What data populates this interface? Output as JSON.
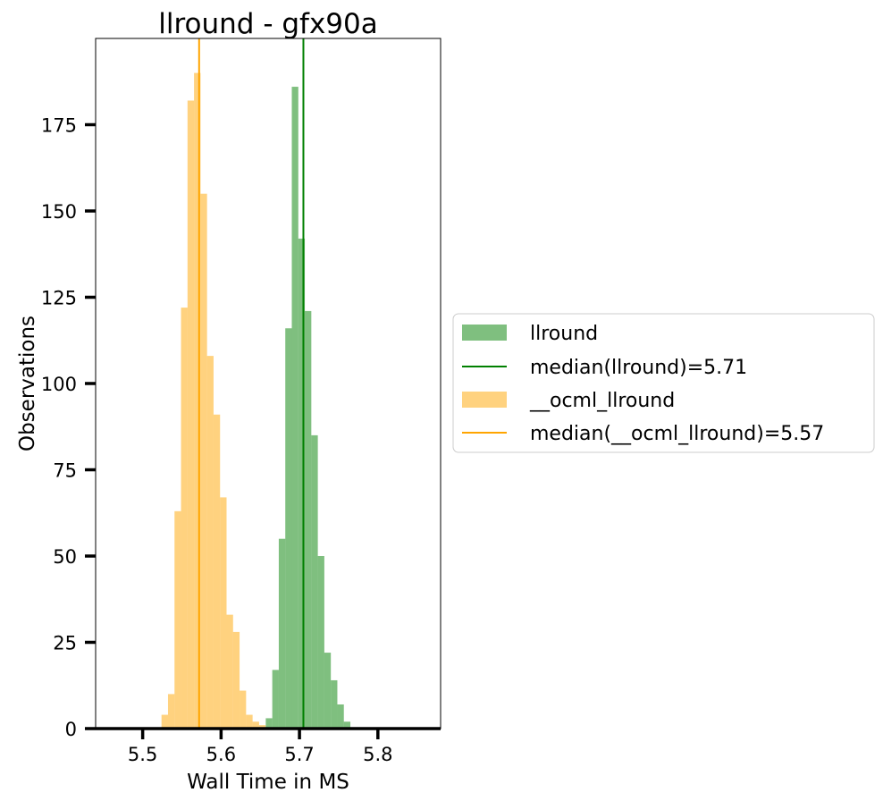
{
  "chart_data": {
    "type": "bar",
    "title": "llround - gfx90a",
    "xlabel": "Wall Time in MS",
    "ylabel": "Observations",
    "xlim": [
      5.44,
      5.88
    ],
    "ylim": [
      0,
      200
    ],
    "xticks": [
      "5.5",
      "5.6",
      "5.7",
      "5.8"
    ],
    "yticks": [
      "0",
      "25",
      "50",
      "75",
      "100",
      "125",
      "150",
      "175"
    ],
    "grid": false,
    "legend_placement": "right, outside",
    "bin_width": 0.0083,
    "series": [
      {
        "name": "llround",
        "color": "#008000",
        "alpha": 0.5,
        "bin_start": 5.657,
        "counts": [
          3,
          17,
          55,
          116,
          186,
          142,
          121,
          85,
          50,
          22,
          14,
          7,
          2
        ]
      },
      {
        "name": "__ocml_llround",
        "color": "#ffa500",
        "alpha": 0.5,
        "bin_start": 5.524,
        "counts": [
          4,
          10,
          63,
          122,
          182,
          190,
          155,
          108,
          91,
          67,
          33,
          28,
          11,
          4,
          2,
          1
        ]
      }
    ],
    "median_lines": [
      {
        "name": "median(llround)=5.71",
        "value": 5.705,
        "color": "#008000"
      },
      {
        "name": "median(__ocml_llround)=5.57",
        "value": 5.572,
        "color": "#ffa500"
      }
    ],
    "legend": [
      {
        "label": "llround",
        "kind": "patch",
        "color": "#008000"
      },
      {
        "label": "median(llround)=5.71",
        "kind": "line",
        "color": "#008000"
      },
      {
        "label": "__ocml_llround",
        "kind": "patch",
        "color": "#ffa500"
      },
      {
        "label": "median(__ocml_llround)=5.57",
        "kind": "line",
        "color": "#ffa500"
      }
    ]
  }
}
